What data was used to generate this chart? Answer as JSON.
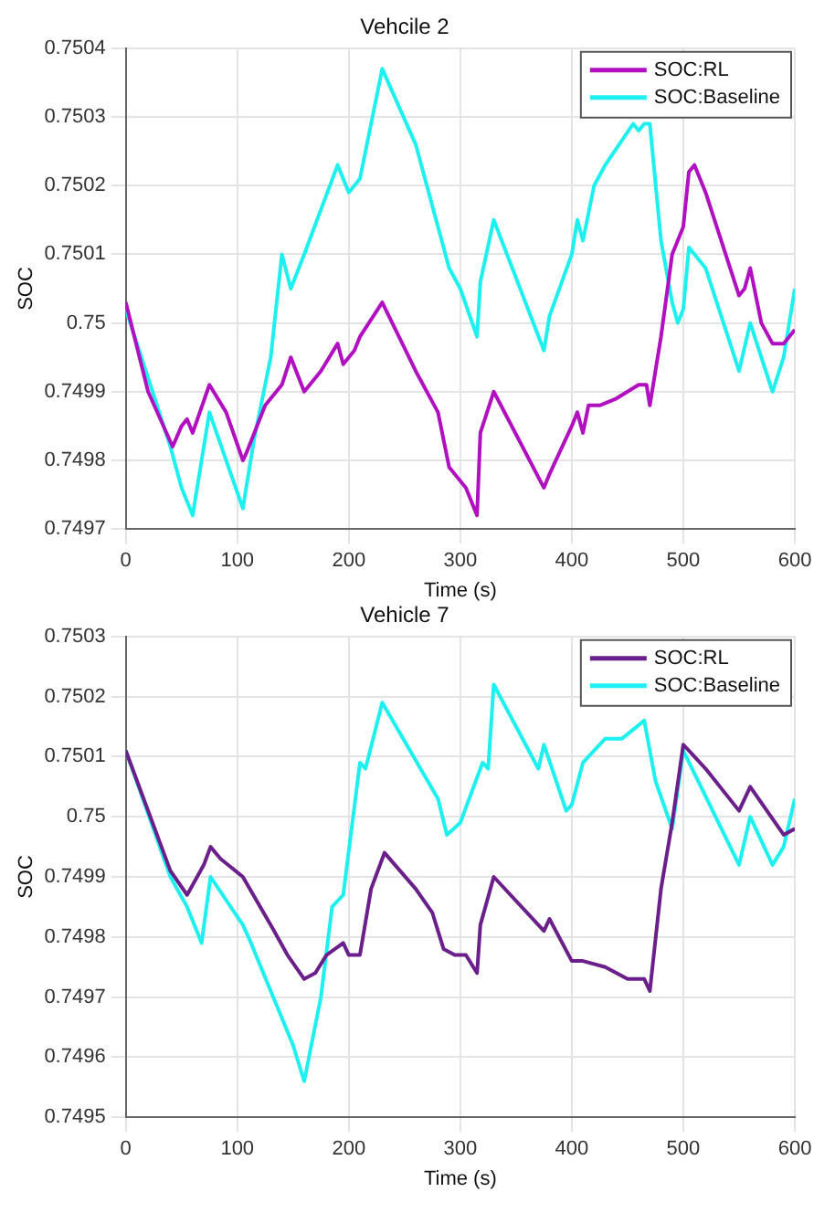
{
  "chart_data": [
    {
      "type": "line",
      "title": "Vehcile 2",
      "xlabel": "Time (s)",
      "ylabel": "SOC",
      "xlim": [
        0,
        600
      ],
      "xticks": [
        0,
        100,
        200,
        300,
        400,
        500,
        600
      ],
      "ylim": [
        0.7497,
        0.7504
      ],
      "yticks": [
        0.7497,
        0.7498,
        0.7499,
        0.75,
        0.7501,
        0.7502,
        0.7503,
        0.7504
      ],
      "grid": true,
      "legend": "top right",
      "marker": "none",
      "line_style": "solid",
      "series": [
        {
          "name": "SOC:RL",
          "color": "#b010c0",
          "x": [
            0,
            20,
            42,
            50,
            55,
            60,
            75,
            90,
            105,
            108,
            125,
            140,
            148,
            160,
            175,
            190,
            195,
            205,
            210,
            230,
            260,
            280,
            290,
            305,
            315,
            318,
            330,
            375,
            380,
            400,
            405,
            410,
            415,
            425,
            440,
            460,
            467,
            470,
            480,
            490,
            500,
            505,
            510,
            520,
            550,
            555,
            560,
            570,
            580,
            590,
            600
          ],
          "values": [
            0.75003,
            0.7499,
            0.74982,
            0.74985,
            0.74986,
            0.74984,
            0.74991,
            0.74987,
            0.7498,
            0.74981,
            0.74988,
            0.74991,
            0.74995,
            0.7499,
            0.74993,
            0.74997,
            0.74994,
            0.74996,
            0.74998,
            0.75003,
            0.74993,
            0.74987,
            0.74979,
            0.74976,
            0.74972,
            0.74984,
            0.7499,
            0.74976,
            0.74978,
            0.74985,
            0.74987,
            0.74984,
            0.74988,
            0.74988,
            0.74989,
            0.74991,
            0.74991,
            0.74988,
            0.74998,
            0.7501,
            0.75014,
            0.75022,
            0.75023,
            0.75019,
            0.75004,
            0.75005,
            0.75008,
            0.75,
            0.74997,
            0.74997,
            0.74999
          ]
        },
        {
          "name": "SOC:Baseline",
          "color": "#1ef0f0",
          "x": [
            0,
            40,
            50,
            60,
            75,
            105,
            115,
            130,
            140,
            148,
            160,
            190,
            200,
            210,
            230,
            260,
            290,
            300,
            315,
            318,
            330,
            375,
            380,
            400,
            405,
            410,
            420,
            430,
            455,
            460,
            465,
            470,
            480,
            490,
            495,
            500,
            505,
            520,
            550,
            560,
            580,
            590,
            600
          ],
          "values": [
            0.75002,
            0.74982,
            0.74976,
            0.74972,
            0.74987,
            0.74973,
            0.74983,
            0.74995,
            0.7501,
            0.75005,
            0.7501,
            0.75023,
            0.75019,
            0.75021,
            0.75037,
            0.75026,
            0.75008,
            0.75005,
            0.74998,
            0.75006,
            0.75015,
            0.74996,
            0.75001,
            0.7501,
            0.75015,
            0.75012,
            0.7502,
            0.75023,
            0.75029,
            0.75028,
            0.75029,
            0.75029,
            0.75012,
            0.75003,
            0.75,
            0.75002,
            0.75011,
            0.75008,
            0.74993,
            0.75,
            0.7499,
            0.74995,
            0.75005
          ]
        }
      ]
    },
    {
      "type": "line",
      "title": "Vehicle 7",
      "xlabel": "Time (s)",
      "ylabel": "SOC",
      "xlim": [
        0,
        600
      ],
      "xticks": [
        0,
        100,
        200,
        300,
        400,
        500,
        600
      ],
      "ylim": [
        0.7495,
        0.7503
      ],
      "yticks": [
        0.7495,
        0.7496,
        0.7497,
        0.7498,
        0.7499,
        0.75,
        0.7501,
        0.7502,
        0.7503
      ],
      "grid": true,
      "legend": "top right",
      "marker": "none",
      "line_style": "solid",
      "series": [
        {
          "name": "SOC:RL",
          "color": "#6a1f8a",
          "x": [
            0,
            40,
            55,
            70,
            76,
            85,
            105,
            130,
            145,
            160,
            170,
            180,
            195,
            200,
            210,
            220,
            232,
            260,
            275,
            285,
            295,
            305,
            315,
            318,
            330,
            375,
            380,
            400,
            410,
            430,
            450,
            465,
            470,
            480,
            490,
            500,
            520,
            550,
            560,
            590,
            600
          ],
          "values": [
            0.75011,
            0.74991,
            0.74987,
            0.74992,
            0.74995,
            0.74993,
            0.7499,
            0.74982,
            0.74977,
            0.74973,
            0.74974,
            0.74977,
            0.74979,
            0.74977,
            0.74977,
            0.74988,
            0.74994,
            0.74988,
            0.74984,
            0.74978,
            0.74977,
            0.74977,
            0.74974,
            0.74982,
            0.7499,
            0.74981,
            0.74983,
            0.74976,
            0.74976,
            0.74975,
            0.74973,
            0.74973,
            0.74971,
            0.74988,
            0.74999,
            0.75012,
            0.75008,
            0.75001,
            0.75005,
            0.74997,
            0.74998
          ]
        },
        {
          "name": "SOC:Baseline",
          "color": "#1ef0f0",
          "x": [
            0,
            40,
            55,
            68,
            76,
            105,
            110,
            150,
            160,
            175,
            185,
            195,
            210,
            215,
            230,
            280,
            288,
            300,
            320,
            325,
            330,
            370,
            375,
            395,
            400,
            410,
            430,
            445,
            465,
            475,
            490,
            500,
            550,
            560,
            580,
            590,
            600
          ],
          "values": [
            0.75011,
            0.7499,
            0.74985,
            0.74979,
            0.7499,
            0.74982,
            0.7498,
            0.74962,
            0.74956,
            0.7497,
            0.74985,
            0.74987,
            0.75009,
            0.75008,
            0.75019,
            0.75003,
            0.74997,
            0.74999,
            0.75009,
            0.75008,
            0.75022,
            0.75008,
            0.75012,
            0.75001,
            0.75002,
            0.75009,
            0.75013,
            0.75013,
            0.75016,
            0.75006,
            0.74998,
            0.75011,
            0.74992,
            0.75,
            0.74992,
            0.74995,
            0.75003
          ]
        }
      ]
    }
  ]
}
